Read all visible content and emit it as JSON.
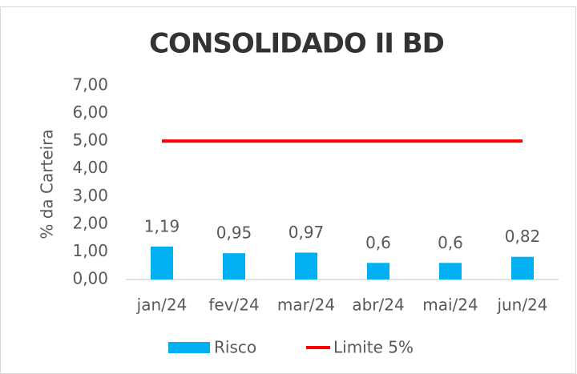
{
  "chart_data": {
    "type": "bar",
    "title": "CONSOLIDADO II BD",
    "ylabel": "% da Carteira",
    "categories": [
      "jan/24",
      "fev/24",
      "mar/24",
      "abr/24",
      "mai/24",
      "jun/24"
    ],
    "series": [
      {
        "name": "Risco",
        "color": "#00b0f0",
        "values": [
          1.19,
          0.95,
          0.97,
          0.6,
          0.6,
          0.82
        ],
        "value_labels": [
          "1,19",
          "0,95",
          "0,97",
          "0,6",
          "0,6",
          "0,82"
        ]
      },
      {
        "name": "Limite 5%",
        "color": "#ff0000",
        "type": "line",
        "values": [
          5,
          5,
          5,
          5,
          5,
          5
        ]
      }
    ],
    "ylim": [
      0,
      7
    ],
    "yticks": [
      {
        "value": 0,
        "label": "0,00"
      },
      {
        "value": 1,
        "label": "1,00"
      },
      {
        "value": 2,
        "label": "2,00"
      },
      {
        "value": 3,
        "label": "3,00"
      },
      {
        "value": 4,
        "label": "4,00"
      },
      {
        "value": 5,
        "label": "5,00"
      },
      {
        "value": 6,
        "label": "6,00"
      },
      {
        "value": 7,
        "label": "7,00"
      }
    ],
    "grid": false,
    "legend": "bottom"
  }
}
